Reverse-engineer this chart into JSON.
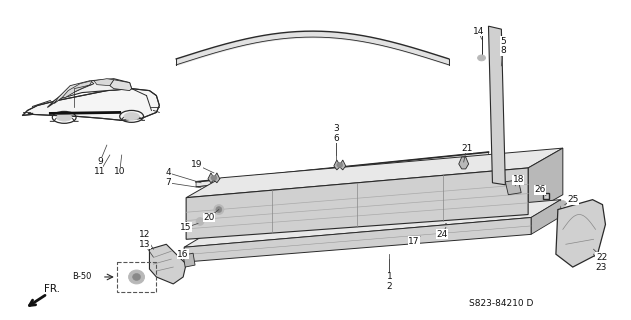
{
  "background_color": "#ffffff",
  "diagram_ref": "S823-84210 D",
  "line_color": "#2a2a2a",
  "text_color": "#111111",
  "fill_light": "#e8e8e8",
  "fill_mid": "#d0d0d0",
  "fill_dark": "#b8b8b8"
}
